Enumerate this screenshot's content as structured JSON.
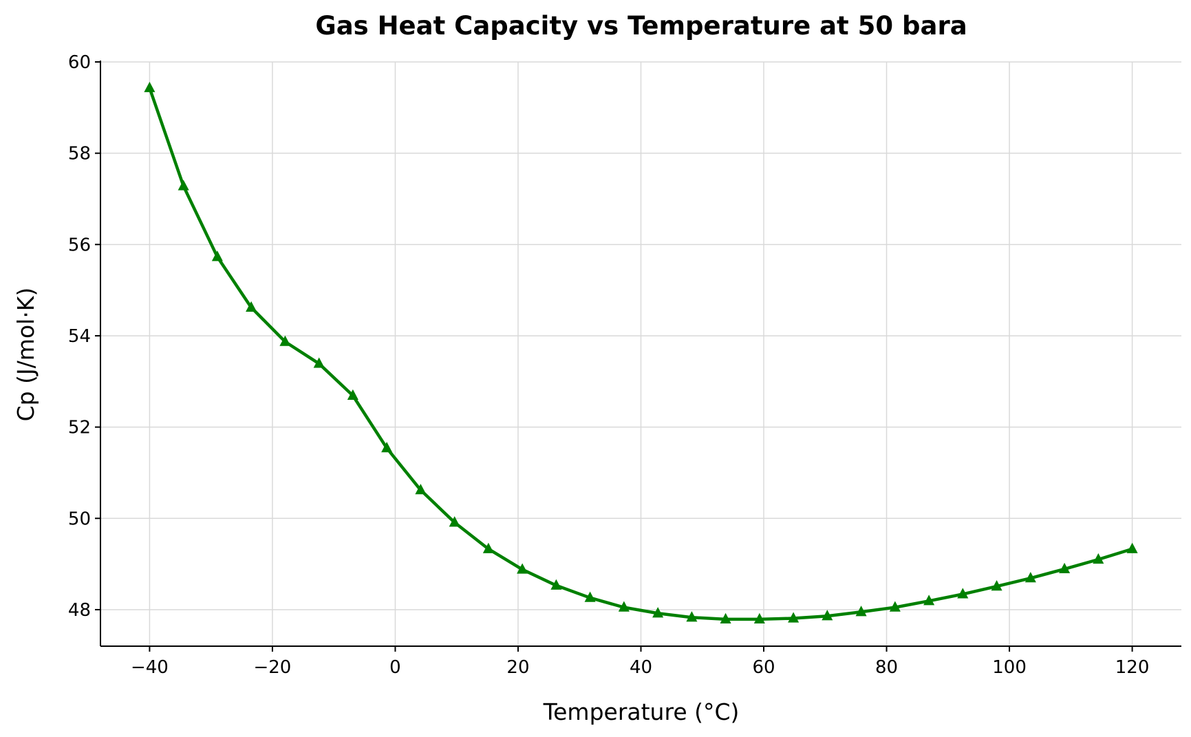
{
  "chart_data": {
    "type": "line",
    "title": "Gas Heat Capacity vs Temperature at 50 bara",
    "xlabel": "Temperature (°C)",
    "ylabel": "Cp (J/mol·K)",
    "xlim": [
      -48,
      128
    ],
    "ylim": [
      47.2,
      60.0
    ],
    "xticks": [
      -40,
      -20,
      0,
      20,
      40,
      60,
      80,
      100,
      120
    ],
    "xtick_labels": [
      "−40",
      "−20",
      "0",
      "20",
      "40",
      "60",
      "80",
      "100",
      "120"
    ],
    "yticks": [
      48,
      50,
      52,
      54,
      56,
      58,
      60
    ],
    "ytick_labels": [
      "48",
      "50",
      "52",
      "54",
      "56",
      "58",
      "60"
    ],
    "grid": true,
    "marker": "triangle-up",
    "series": [
      {
        "color": "#008000",
        "x": [
          -40.0,
          -34.48,
          -28.97,
          -23.45,
          -17.93,
          -12.41,
          -6.9,
          -1.38,
          4.14,
          9.66,
          15.17,
          20.69,
          26.21,
          31.72,
          37.24,
          42.76,
          48.28,
          53.79,
          59.31,
          64.83,
          70.34,
          75.86,
          81.38,
          86.9,
          92.41,
          97.93,
          103.45,
          108.97,
          114.48,
          120.0
        ],
        "y": [
          59.43,
          57.28,
          55.73,
          54.62,
          53.87,
          53.39,
          52.69,
          51.54,
          50.62,
          49.91,
          49.33,
          48.88,
          48.53,
          48.26,
          48.05,
          47.92,
          47.83,
          47.79,
          47.79,
          47.81,
          47.86,
          47.95,
          48.05,
          48.19,
          48.34,
          48.51,
          48.69,
          48.89,
          49.1,
          49.33
        ]
      }
    ]
  }
}
